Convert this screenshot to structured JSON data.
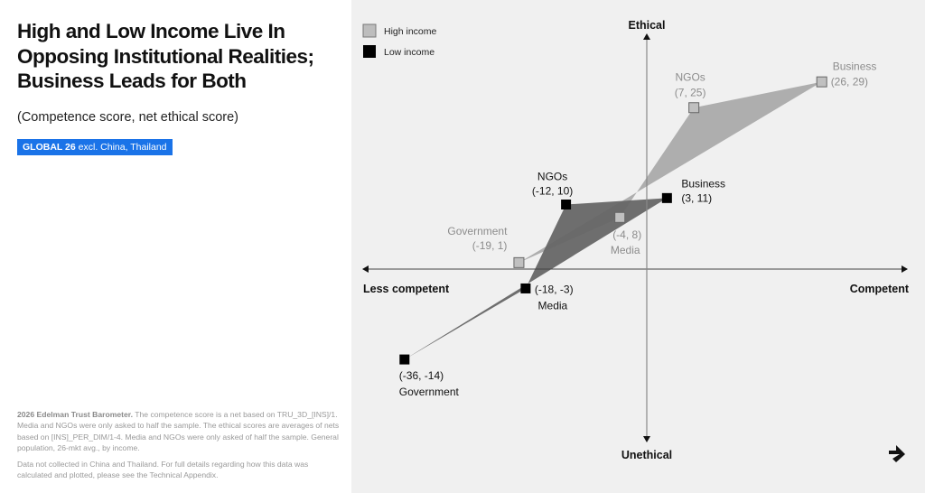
{
  "title": "High and Low Income Live In Opposing Institutional Realities; Business Leads for Both",
  "subtitle": "(Competence score, net ethical score)",
  "badge": {
    "bold": "GLOBAL 26",
    "rest": " excl. China, Thailand",
    "color": "#1a73e8"
  },
  "notes": {
    "source_bold": "2026 Edelman Trust Barometer.",
    "source_text": " The competence score is a net based on TRU_3D_[INS]/1. Media and NGOs were only asked to half the sample. The ethical scores are averages of nets based on [INS]_PER_DIM/1-4. Media and NGOs were only asked of half the sample. General population, 26-mkt avg., by income.",
    "data_note": "Data not collected in China and Thailand. For full details regarding how this data was calculated and plotted, please see the Technical Appendix."
  },
  "chart_data": {
    "type": "scatter",
    "xlabel_left": "Less competent",
    "xlabel_right": "Competent",
    "ylabel_top": "Ethical",
    "ylabel_bottom": "Unethical",
    "xlim": [
      -42,
      38
    ],
    "ylim": [
      -23,
      38
    ],
    "legend": {
      "placement": "top-left",
      "entries": [
        "High income",
        "Low income"
      ]
    },
    "series": [
      {
        "name": "High income",
        "color": "#c0c0c0",
        "fill": "#a6a6a6",
        "label_color": "#8c8c8c",
        "points": [
          {
            "label": "Business",
            "coord_label": "(26, 29)",
            "x": 26,
            "y": 29
          },
          {
            "label": "NGOs",
            "coord_label": "(7, 25)",
            "x": 7,
            "y": 25
          },
          {
            "label": "Media",
            "coord_label": "(-4, 8)",
            "x": -4,
            "y": 8
          },
          {
            "label": "Government",
            "coord_label": "(-19, 1)",
            "x": -19,
            "y": 1
          }
        ]
      },
      {
        "name": "Low income",
        "color": "#000000",
        "fill": "#666666",
        "label_color": "#111111",
        "points": [
          {
            "label": "Business",
            "coord_label": "(3, 11)",
            "x": 3,
            "y": 11
          },
          {
            "label": "NGOs",
            "coord_label": "(-12, 10)",
            "x": -12,
            "y": 10
          },
          {
            "label": "Media",
            "coord_label": "(-18, -3)",
            "x": -18,
            "y": -3
          },
          {
            "label": "Government",
            "coord_label": "(-36, -14)",
            "x": -36,
            "y": -14
          }
        ]
      }
    ]
  },
  "icons": {
    "nav": "next-arrow-icon"
  }
}
